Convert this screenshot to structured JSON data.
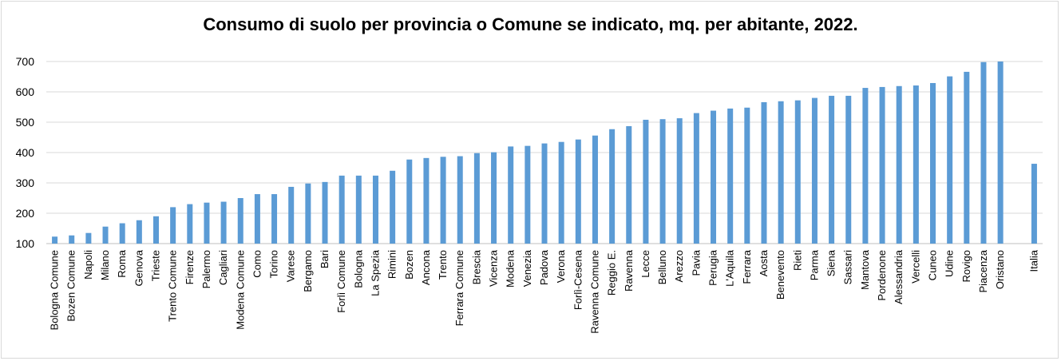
{
  "chart_data": {
    "type": "bar",
    "title": "Consumo di suolo per provincia o Comune se indicato, mq. per abitante, 2022.",
    "xlabel": "",
    "ylabel": "",
    "ylim": [
      100,
      700
    ],
    "yticks": [
      100,
      200,
      300,
      400,
      500,
      600,
      700
    ],
    "grid": true,
    "bar_color": "#5b9bd5",
    "categories": [
      "Bologna Comune",
      "Bozen Comune",
      "Napoli",
      "Milano",
      "Roma",
      "Genova",
      "Trieste",
      "Trento Comune",
      "Firenze",
      "Palermo",
      "Cagliari",
      "Modena Comune",
      "Como",
      "Torino",
      "Varese",
      "Bergamo",
      "Bari",
      "Forlì Comune",
      "Bologna",
      "La Spezia",
      "Rimini",
      "Bozen",
      "Ancona",
      "Trento",
      "Ferrara Comune",
      "Brescia",
      "Vicenza",
      "Modena",
      "Venezia",
      "Padova",
      "Verona",
      "Forlì-Cesena",
      "Ravenna Comune",
      "Reggio E.",
      "Ravenna",
      "Lecce",
      "Belluno",
      "Arezzo",
      "Pavia",
      "Perugia",
      "L'Aquila",
      "Ferrara",
      "Aosta",
      "Benevento",
      "Rieti",
      "Parma",
      "Siena",
      "Sassari",
      "Mantova",
      "Pordenone",
      "Alessandria",
      "Vercelli",
      "Cuneo",
      "Udine",
      "Rovigo",
      "Piacenza",
      "Oristano",
      "",
      "Italia"
    ],
    "values": [
      123,
      127,
      135,
      156,
      167,
      177,
      190,
      220,
      230,
      235,
      238,
      250,
      263,
      263,
      287,
      298,
      303,
      324,
      324,
      324,
      340,
      377,
      382,
      386,
      388,
      398,
      401,
      420,
      422,
      430,
      435,
      443,
      456,
      477,
      487,
      508,
      510,
      513,
      530,
      538,
      545,
      548,
      566,
      569,
      572,
      580,
      587,
      587,
      613,
      616,
      619,
      621,
      629,
      651,
      666,
      698,
      700,
      null,
      363
    ]
  }
}
